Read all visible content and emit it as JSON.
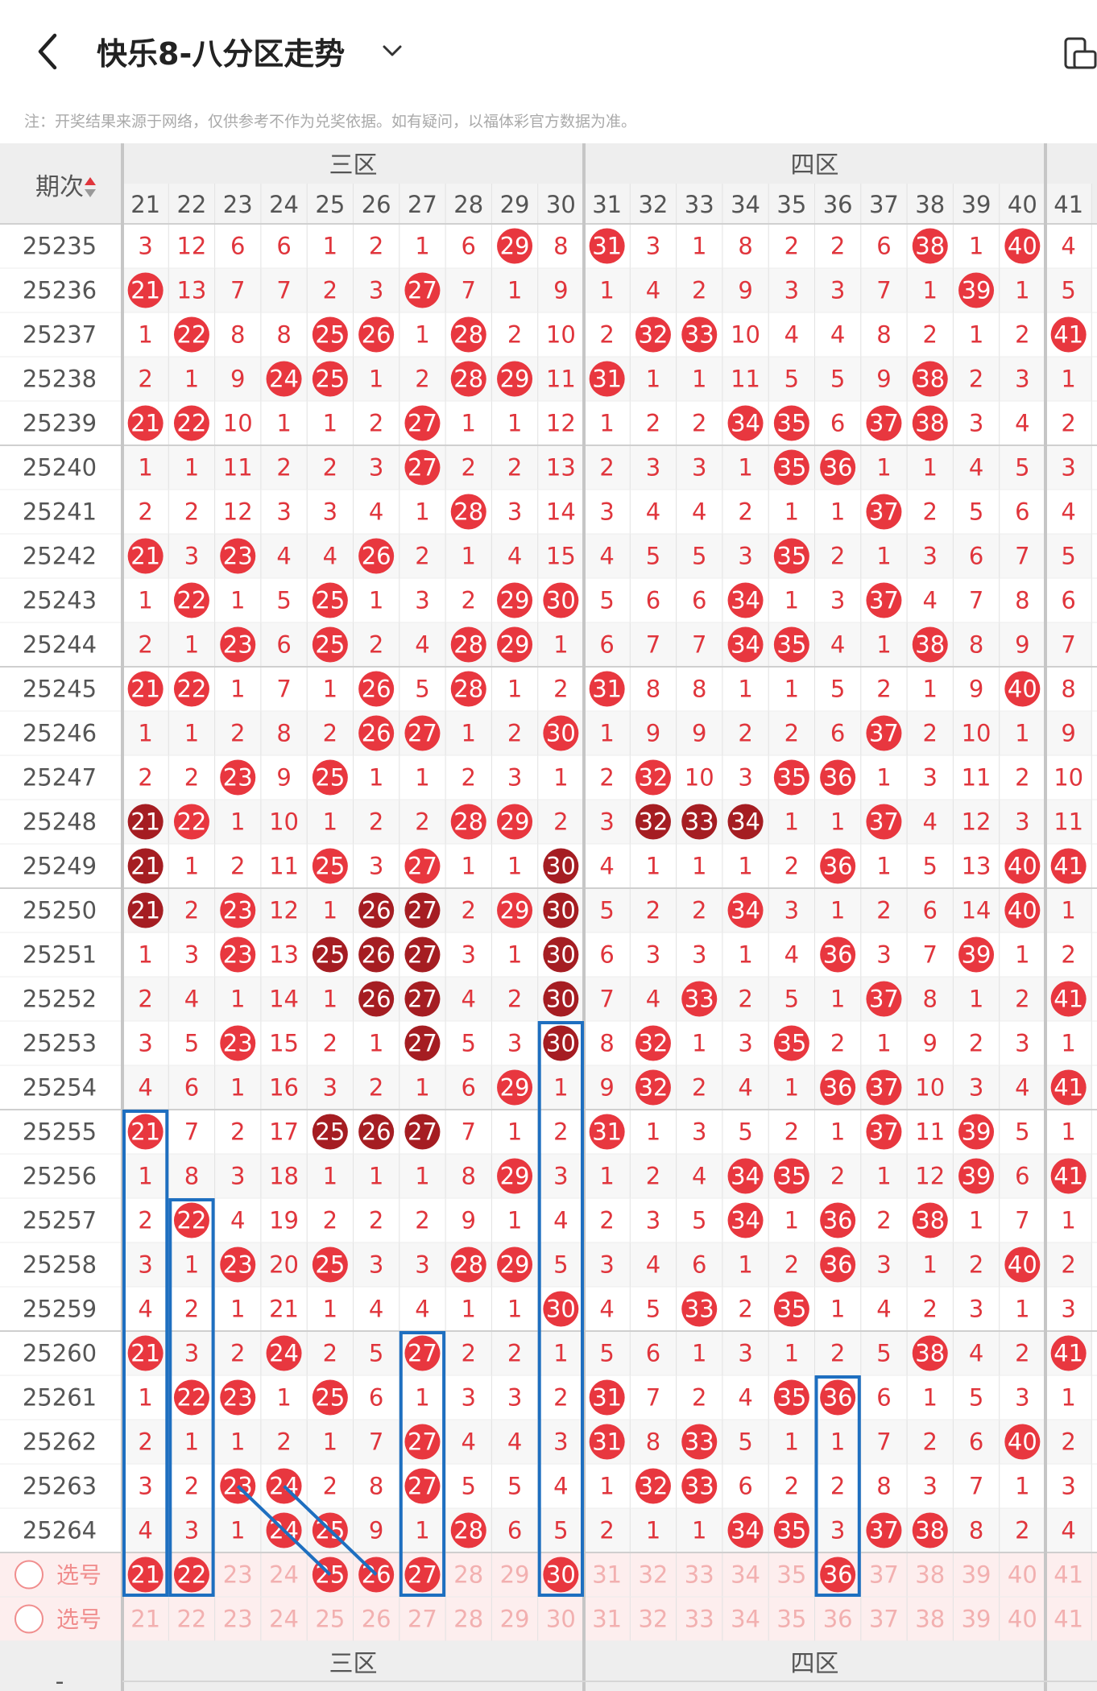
{
  "header": {
    "title": "快乐8-八分区走势"
  },
  "notice": "注：开奖结果来源于网络，仅供参考不作为兑奖依据。如有疑问，以福体彩官方数据为准。",
  "table": {
    "period_header": "期次",
    "zones": [
      {
        "name": "三区",
        "first": 21,
        "last": 30
      },
      {
        "name": "四区",
        "first": 31,
        "last": 40
      }
    ],
    "columns": [
      21,
      22,
      23,
      24,
      25,
      26,
      27,
      28,
      29,
      30,
      31,
      32,
      33,
      34,
      35,
      36,
      37,
      38,
      39,
      40,
      41
    ],
    "rows": [
      {
        "period": "25235",
        "cells": [
          "3",
          "12",
          "6",
          "6",
          "1",
          "2",
          "1",
          "6",
          "29",
          "8",
          "31",
          "3",
          "1",
          "8",
          "2",
          "2",
          "6",
          "38",
          "1",
          "40",
          "4"
        ]
      },
      {
        "period": "25236",
        "cells": [
          "21",
          "13",
          "7",
          "7",
          "2",
          "3",
          "27",
          "7",
          "1",
          "9",
          "1",
          "4",
          "2",
          "9",
          "3",
          "3",
          "7",
          "1",
          "39",
          "1",
          "5"
        ]
      },
      {
        "period": "25237",
        "cells": [
          "1",
          "22",
          "8",
          "8",
          "25",
          "26",
          "1",
          "28",
          "2",
          "10",
          "2",
          "32",
          "33",
          "10",
          "4",
          "4",
          "8",
          "2",
          "1",
          "2",
          "41"
        ]
      },
      {
        "period": "25238",
        "cells": [
          "2",
          "1",
          "9",
          "24",
          "25",
          "1",
          "2",
          "28",
          "29",
          "11",
          "31",
          "1",
          "1",
          "11",
          "5",
          "5",
          "9",
          "38",
          "2",
          "3",
          "1"
        ]
      },
      {
        "period": "25239",
        "cells": [
          "21",
          "22",
          "10",
          "1",
          "1",
          "2",
          "27",
          "1",
          "1",
          "12",
          "1",
          "2",
          "2",
          "34",
          "35",
          "6",
          "37",
          "38",
          "3",
          "4",
          "2"
        ]
      },
      {
        "period": "25240",
        "cells": [
          "1",
          "1",
          "11",
          "2",
          "2",
          "3",
          "27",
          "2",
          "2",
          "13",
          "2",
          "3",
          "3",
          "1",
          "35",
          "36",
          "1",
          "1",
          "4",
          "5",
          "3"
        ]
      },
      {
        "period": "25241",
        "cells": [
          "2",
          "2",
          "12",
          "3",
          "3",
          "4",
          "1",
          "28",
          "3",
          "14",
          "3",
          "4",
          "4",
          "2",
          "1",
          "1",
          "37",
          "2",
          "5",
          "6",
          "4"
        ]
      },
      {
        "period": "25242",
        "cells": [
          "21",
          "3",
          "23",
          "4",
          "4",
          "26",
          "2",
          "1",
          "4",
          "15",
          "4",
          "5",
          "5",
          "3",
          "35",
          "2",
          "1",
          "3",
          "6",
          "7",
          "5"
        ]
      },
      {
        "period": "25243",
        "cells": [
          "1",
          "22",
          "1",
          "5",
          "25",
          "1",
          "3",
          "2",
          "29",
          "30",
          "5",
          "6",
          "6",
          "34",
          "1",
          "3",
          "37",
          "4",
          "7",
          "8",
          "6"
        ]
      },
      {
        "period": "25244",
        "cells": [
          "2",
          "1",
          "23",
          "6",
          "25",
          "2",
          "4",
          "28",
          "29",
          "1",
          "6",
          "7",
          "7",
          "34",
          "35",
          "4",
          "1",
          "38",
          "8",
          "9",
          "7"
        ]
      },
      {
        "period": "25245",
        "cells": [
          "21",
          "22",
          "1",
          "7",
          "1",
          "26",
          "5",
          "28",
          "1",
          "2",
          "31",
          "8",
          "8",
          "1",
          "1",
          "5",
          "2",
          "1",
          "9",
          "40",
          "8"
        ]
      },
      {
        "period": "25246",
        "cells": [
          "1",
          "1",
          "2",
          "8",
          "2",
          "26",
          "27",
          "1",
          "2",
          "30",
          "1",
          "9",
          "9",
          "2",
          "2",
          "6",
          "37",
          "2",
          "10",
          "1",
          "9"
        ]
      },
      {
        "period": "25247",
        "cells": [
          "2",
          "2",
          "23",
          "9",
          "25",
          "1",
          "1",
          "2",
          "3",
          "1",
          "2",
          "32",
          "10",
          "3",
          "35",
          "36",
          "1",
          "3",
          "11",
          "2",
          "10"
        ]
      },
      {
        "period": "25248",
        "cells": [
          "21",
          "22",
          "1",
          "10",
          "1",
          "2",
          "2",
          "28",
          "29",
          "2",
          "3",
          "32",
          "33",
          "34",
          "1",
          "1",
          "37",
          "4",
          "12",
          "3",
          "11"
        ]
      },
      {
        "period": "25249",
        "cells": [
          "21",
          "1",
          "2",
          "11",
          "25",
          "3",
          "27",
          "1",
          "1",
          "30",
          "4",
          "1",
          "1",
          "1",
          "2",
          "36",
          "1",
          "5",
          "13",
          "40",
          "41"
        ]
      },
      {
        "period": "25250",
        "cells": [
          "21",
          "2",
          "23",
          "12",
          "1",
          "26",
          "27",
          "2",
          "29",
          "30",
          "5",
          "2",
          "2",
          "34",
          "3",
          "1",
          "2",
          "6",
          "14",
          "40",
          "1"
        ]
      },
      {
        "period": "25251",
        "cells": [
          "1",
          "3",
          "23",
          "13",
          "25",
          "26",
          "27",
          "3",
          "1",
          "30",
          "6",
          "3",
          "3",
          "1",
          "4",
          "36",
          "3",
          "7",
          "39",
          "1",
          "2"
        ]
      },
      {
        "period": "25252",
        "cells": [
          "2",
          "4",
          "1",
          "14",
          "1",
          "26",
          "27",
          "4",
          "2",
          "30",
          "7",
          "4",
          "33",
          "2",
          "5",
          "1",
          "37",
          "8",
          "1",
          "2",
          "41"
        ]
      },
      {
        "period": "25253",
        "cells": [
          "3",
          "5",
          "23",
          "15",
          "2",
          "1",
          "27",
          "5",
          "3",
          "30",
          "8",
          "32",
          "1",
          "3",
          "35",
          "2",
          "1",
          "9",
          "2",
          "3",
          "1"
        ]
      },
      {
        "period": "25254",
        "cells": [
          "4",
          "6",
          "1",
          "16",
          "3",
          "2",
          "1",
          "6",
          "29",
          "1",
          "9",
          "32",
          "2",
          "4",
          "1",
          "36",
          "37",
          "10",
          "3",
          "4",
          "41"
        ]
      },
      {
        "period": "25255",
        "cells": [
          "21",
          "7",
          "2",
          "17",
          "25",
          "26",
          "27",
          "7",
          "1",
          "2",
          "31",
          "1",
          "3",
          "5",
          "2",
          "1",
          "37",
          "11",
          "39",
          "5",
          "1"
        ]
      },
      {
        "period": "25256",
        "cells": [
          "1",
          "8",
          "3",
          "18",
          "1",
          "1",
          "1",
          "8",
          "29",
          "3",
          "1",
          "2",
          "4",
          "34",
          "35",
          "2",
          "1",
          "12",
          "39",
          "6",
          "41"
        ]
      },
      {
        "period": "25257",
        "cells": [
          "2",
          "22",
          "4",
          "19",
          "2",
          "2",
          "2",
          "9",
          "1",
          "4",
          "2",
          "3",
          "5",
          "34",
          "1",
          "36",
          "2",
          "38",
          "1",
          "7",
          "1"
        ]
      },
      {
        "period": "25258",
        "cells": [
          "3",
          "1",
          "23",
          "20",
          "25",
          "3",
          "3",
          "28",
          "29",
          "5",
          "3",
          "4",
          "6",
          "1",
          "2",
          "36",
          "3",
          "1",
          "2",
          "40",
          "2"
        ]
      },
      {
        "period": "25259",
        "cells": [
          "4",
          "2",
          "1",
          "21",
          "1",
          "4",
          "4",
          "1",
          "1",
          "30",
          "4",
          "5",
          "33",
          "2",
          "35",
          "1",
          "4",
          "2",
          "3",
          "1",
          "3"
        ]
      },
      {
        "period": "25260",
        "cells": [
          "21",
          "3",
          "2",
          "24",
          "2",
          "5",
          "27",
          "2",
          "2",
          "1",
          "5",
          "6",
          "1",
          "3",
          "1",
          "2",
          "5",
          "38",
          "4",
          "2",
          "41"
        ]
      },
      {
        "period": "25261",
        "cells": [
          "1",
          "22",
          "23",
          "1",
          "25",
          "6",
          "1",
          "3",
          "3",
          "2",
          "31",
          "7",
          "2",
          "4",
          "35",
          "36",
          "6",
          "1",
          "5",
          "3",
          "1"
        ]
      },
      {
        "period": "25262",
        "cells": [
          "2",
          "1",
          "1",
          "2",
          "1",
          "7",
          "27",
          "4",
          "4",
          "3",
          "31",
          "8",
          "33",
          "5",
          "1",
          "1",
          "7",
          "2",
          "6",
          "40",
          "2"
        ]
      },
      {
        "period": "25263",
        "cells": [
          "3",
          "2",
          "23",
          "24",
          "2",
          "8",
          "27",
          "5",
          "5",
          "4",
          "1",
          "32",
          "33",
          "6",
          "2",
          "2",
          "8",
          "3",
          "7",
          "1",
          "3"
        ]
      },
      {
        "period": "25264",
        "cells": [
          "4",
          "3",
          "1",
          "24",
          "25",
          "9",
          "1",
          "28",
          "6",
          "5",
          "2",
          "1",
          "1",
          "34",
          "35",
          "3",
          "37",
          "38",
          "8",
          "2",
          "4"
        ]
      }
    ],
    "select_rows": [
      {
        "label": "选号",
        "picked": [
          21,
          22,
          25,
          26,
          27,
          30,
          36
        ]
      },
      {
        "label": "选号",
        "picked": []
      }
    ],
    "footer_period": "-"
  },
  "colors": {
    "ball_red": "#e8373f",
    "ball_dark": "#a51d22",
    "cell_text": "#e0353c",
    "highlight_box": "#1e6fc0",
    "select_row_bg": "#fdeeee"
  },
  "dark_balls": [
    [
      "25248",
      21
    ],
    [
      "25249",
      21
    ],
    [
      "25249",
      30
    ],
    [
      "25250",
      21
    ],
    [
      "25250",
      26
    ],
    [
      "25250",
      27
    ],
    [
      "25250",
      30
    ],
    [
      "25248",
      32
    ],
    [
      "25248",
      33
    ],
    [
      "25248",
      34
    ],
    [
      "25251",
      25
    ],
    [
      "25251",
      26
    ],
    [
      "25251",
      27
    ],
    [
      "25251",
      30
    ],
    [
      "25252",
      26
    ],
    [
      "25252",
      27
    ],
    [
      "25252",
      30
    ],
    [
      "25253",
      27
    ],
    [
      "25253",
      30
    ],
    [
      "25255",
      25
    ],
    [
      "25255",
      26
    ],
    [
      "25255",
      27
    ]
  ],
  "highlights": [
    {
      "col": 21,
      "from": "25255",
      "to": "选号"
    },
    {
      "col": 22,
      "from": "25257",
      "to": "选号"
    },
    {
      "col": 27,
      "from": "25260",
      "to": "选号"
    },
    {
      "col": 30,
      "from": "25253",
      "to": "选号"
    },
    {
      "col": 36,
      "from": "25261",
      "to": "选号"
    }
  ],
  "connectors": [
    {
      "from": [
        "25263",
        23
      ],
      "to": [
        "选号",
        25
      ]
    },
    {
      "from": [
        "25263",
        24
      ],
      "to": [
        "选号",
        26
      ]
    }
  ]
}
